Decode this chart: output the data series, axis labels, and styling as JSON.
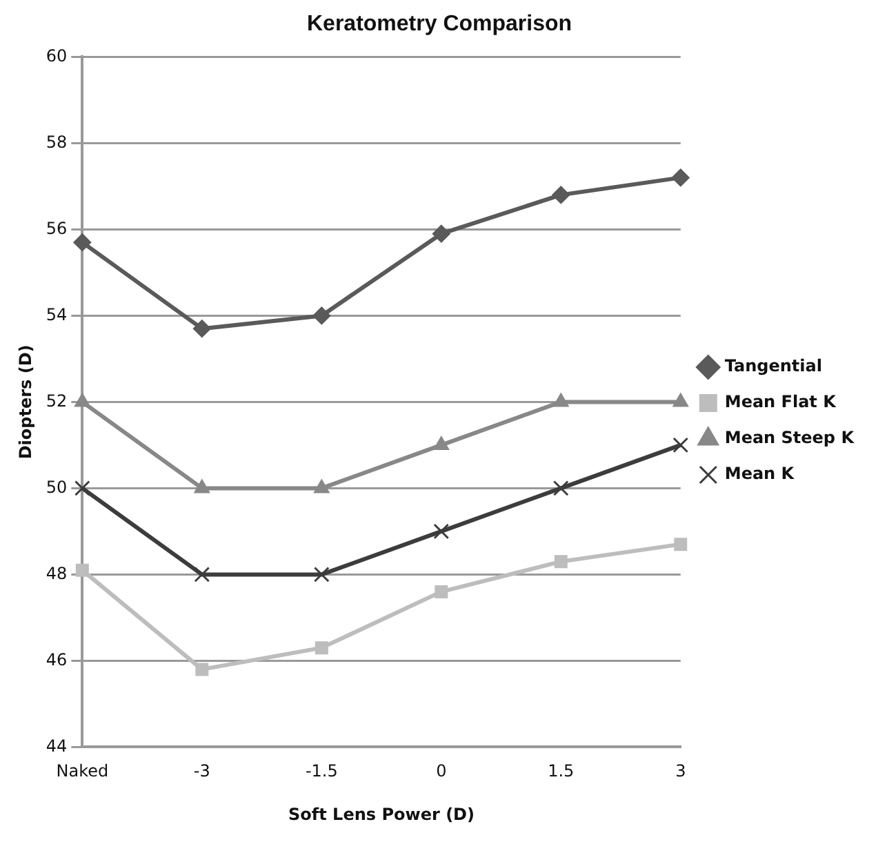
{
  "chart_data": {
    "type": "line",
    "title": "Keratometry Comparison",
    "xlabel": "Soft Lens Power (D)",
    "ylabel": "Diopters (D)",
    "categories": [
      "Naked",
      "-3",
      "-1.5",
      "0",
      "1.5",
      "3"
    ],
    "series": [
      {
        "name": "Tangential",
        "color": "#5a5a5a",
        "marker": "diamond",
        "values": [
          55.7,
          53.7,
          54.0,
          55.9,
          56.8,
          57.2
        ]
      },
      {
        "name": "Mean Flat K",
        "color": "#bdbdbd",
        "marker": "square",
        "values": [
          48.1,
          45.8,
          46.3,
          47.6,
          48.3,
          48.7
        ]
      },
      {
        "name": "Mean Steep K",
        "color": "#888888",
        "marker": "triangle",
        "values": [
          52,
          50,
          50,
          51,
          52,
          52
        ]
      },
      {
        "name": "Mean K",
        "color": "#3c3c3c",
        "marker": "cross",
        "values": [
          50,
          48,
          48,
          49,
          50,
          51
        ]
      }
    ],
    "ylim": [
      44,
      60
    ],
    "yticks": [
      44,
      46,
      48,
      50,
      52,
      54,
      56,
      58,
      60
    ],
    "grid": "y",
    "legend": "right",
    "line_style": "solid"
  }
}
